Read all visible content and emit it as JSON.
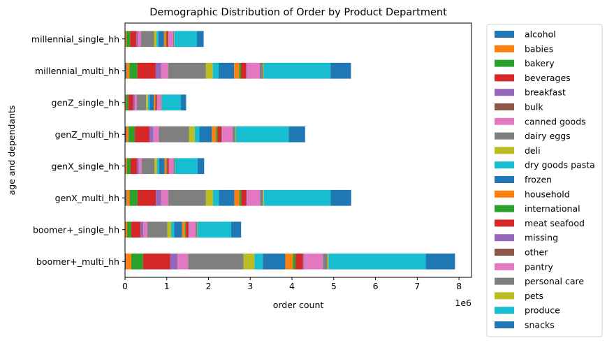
{
  "chart_data": {
    "type": "bar",
    "orientation": "horizontal",
    "stacked": true,
    "title": "Demographic Distribution of Order by Product Department",
    "xlabel": "order count",
    "ylabel": "age and dependants",
    "x_offset_text": "1e6",
    "x_scale": 1000000,
    "xlim": [
      0,
      8300000
    ],
    "x_ticks": [
      "0",
      "1",
      "2",
      "3",
      "4",
      "5",
      "6",
      "7",
      "8"
    ],
    "grid": false,
    "legend_placement": "outside-right",
    "categories": [
      "boomer+_multi_hh",
      "boomer+_single_hh",
      "genX_multi_hh",
      "genX_single_hh",
      "genZ_multi_hh",
      "genZ_single_hh",
      "millennial_multi_hh",
      "millennial_single_hh"
    ],
    "series": [
      {
        "name": "alcohol",
        "color": "#1f77b4",
        "values": [
          20000,
          10000,
          30000,
          14000,
          25000,
          8000,
          30000,
          12000
        ]
      },
      {
        "name": "babies",
        "color": "#ff7f0e",
        "values": [
          130000,
          40000,
          80000,
          30000,
          60000,
          15000,
          75000,
          25000
        ]
      },
      {
        "name": "bakery",
        "color": "#2ca02c",
        "values": [
          280000,
          100000,
          190000,
          90000,
          150000,
          55000,
          190000,
          85000
        ]
      },
      {
        "name": "beverages",
        "color": "#d62728",
        "values": [
          650000,
          220000,
          440000,
          150000,
          350000,
          120000,
          440000,
          150000
        ]
      },
      {
        "name": "breakfast",
        "color": "#9467bd",
        "values": [
          170000,
          70000,
          120000,
          45000,
          90000,
          35000,
          120000,
          45000
        ]
      },
      {
        "name": "bulk",
        "color": "#8c564b",
        "values": [
          10000,
          5000,
          8000,
          3000,
          6000,
          2000,
          8000,
          3000
        ]
      },
      {
        "name": "canned goods",
        "color": "#e377c2",
        "values": [
          250000,
          90000,
          170000,
          65000,
          130000,
          50000,
          170000,
          65000
        ]
      },
      {
        "name": "dairy eggs",
        "color": "#7f7f7f",
        "values": [
          1330000,
          480000,
          900000,
          310000,
          720000,
          220000,
          900000,
          310000
        ]
      },
      {
        "name": "deli",
        "color": "#bcbd22",
        "values": [
          260000,
          90000,
          170000,
          60000,
          140000,
          45000,
          170000,
          60000
        ]
      },
      {
        "name": "dry goods pasta",
        "color": "#17becf",
        "values": [
          200000,
          70000,
          140000,
          50000,
          110000,
          40000,
          140000,
          50000
        ]
      },
      {
        "name": "frozen",
        "color": "#1f77b4",
        "values": [
          540000,
          190000,
          370000,
          130000,
          300000,
          100000,
          370000,
          130000
        ]
      },
      {
        "name": "household",
        "color": "#ff7f0e",
        "values": [
          180000,
          70000,
          120000,
          45000,
          100000,
          30000,
          120000,
          45000
        ]
      },
      {
        "name": "international",
        "color": "#2ca02c",
        "values": [
          65000,
          25000,
          45000,
          15000,
          35000,
          12000,
          45000,
          15000
        ]
      },
      {
        "name": "meat seafood",
        "color": "#d62728",
        "values": [
          175000,
          60000,
          120000,
          40000,
          95000,
          30000,
          120000,
          40000
        ]
      },
      {
        "name": "missing",
        "color": "#9467bd",
        "values": [
          20000,
          8000,
          15000,
          5000,
          12000,
          4000,
          15000,
          5000
        ]
      },
      {
        "name": "other",
        "color": "#8c564b",
        "values": [
          10000,
          3000,
          6000,
          2000,
          5000,
          2000,
          6000,
          2000
        ]
      },
      {
        "name": "pantry",
        "color": "#e377c2",
        "values": [
          450000,
          160000,
          310000,
          110000,
          250000,
          90000,
          310000,
          110000
        ]
      },
      {
        "name": "personal care",
        "color": "#7f7f7f",
        "values": [
          110000,
          40000,
          75000,
          25000,
          60000,
          20000,
          75000,
          25000
        ]
      },
      {
        "name": "pets",
        "color": "#bcbd22",
        "values": [
          25000,
          10000,
          18000,
          7000,
          15000,
          5000,
          18000,
          7000
        ]
      },
      {
        "name": "produce",
        "color": "#17becf",
        "values": [
          2330000,
          800000,
          1600000,
          540000,
          1270000,
          450000,
          1600000,
          540000
        ]
      },
      {
        "name": "snacks",
        "color": "#1f77b4",
        "values": [
          700000,
          240000,
          490000,
          160000,
          390000,
          130000,
          490000,
          160000
        ]
      }
    ]
  }
}
